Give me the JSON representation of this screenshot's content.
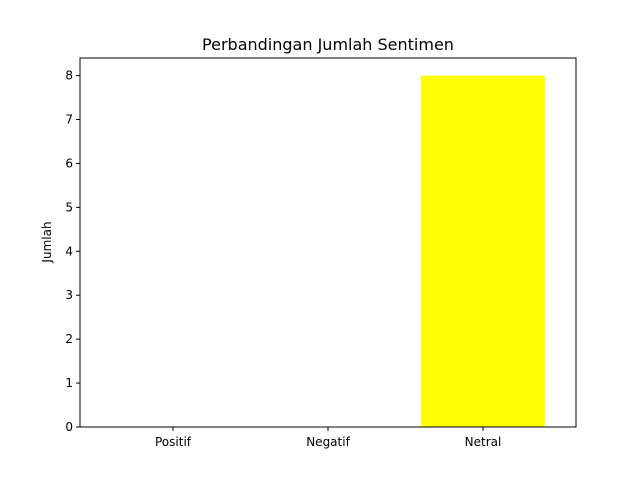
{
  "chart_data": {
    "type": "bar",
    "title": "Perbandingan Jumlah Sentimen",
    "xlabel": "",
    "ylabel": "Jumlah",
    "categories": [
      "Positif",
      "Negatif",
      "Netral"
    ],
    "values": [
      0,
      0,
      8
    ],
    "colors": [
      "#00ff00",
      "#ff0000",
      "#ffff00"
    ],
    "ylim": [
      0,
      8.4
    ],
    "yticks": [
      0,
      1,
      2,
      3,
      4,
      5,
      6,
      7,
      8
    ],
    "grid": false,
    "legend": "none"
  }
}
